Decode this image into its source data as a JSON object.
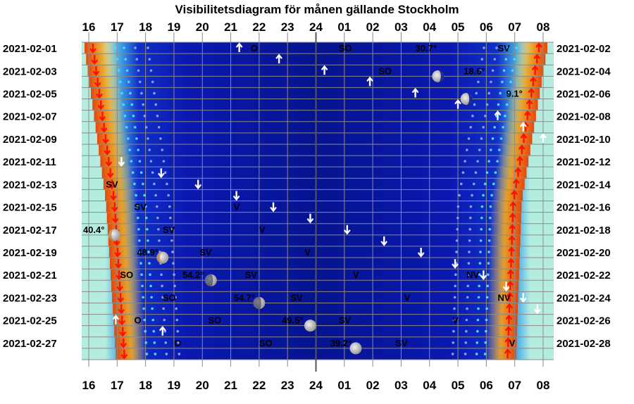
{
  "chart_data": {
    "type": "heatmap",
    "title": "Visibilitetsdiagram för månen gällande Stockholm",
    "x_ticks_top": [
      "16",
      "17",
      "18",
      "19",
      "20",
      "21",
      "22",
      "23",
      "24",
      "01",
      "02",
      "03",
      "04",
      "05",
      "06",
      "07",
      "08"
    ],
    "x_ticks_bottom": [
      "16",
      "17",
      "18",
      "19",
      "20",
      "21",
      "22",
      "23",
      "24",
      "01",
      "02",
      "03",
      "04",
      "05",
      "06",
      "07",
      "08"
    ],
    "x_range_hours": [
      16,
      32
    ],
    "rows_per_day": 2,
    "left_dates": [
      "2021-02-01",
      "2021-02-03",
      "2021-02-05",
      "2021-02-07",
      "2021-02-09",
      "2021-02-11",
      "2021-02-13",
      "2021-02-15",
      "2021-02-17",
      "2021-02-19",
      "2021-02-21",
      "2021-02-23",
      "2021-02-25",
      "2021-02-27"
    ],
    "right_dates": [
      "2021-02-02",
      "2021-02-04",
      "2021-02-06",
      "2021-02-08",
      "2021-02-10",
      "2021-02-12",
      "2021-02-14",
      "2021-02-16",
      "2021-02-18",
      "2021-02-20",
      "2021-02-22",
      "2021-02-24",
      "2021-02-26",
      "2021-02-28"
    ],
    "sunset_hour": [
      16.05,
      16.8,
      17.15
    ],
    "sunrise_hour": [
      31.95,
      31.05,
      30.85
    ],
    "moon_events": [
      {
        "day": 1,
        "type": "rise",
        "hour": 21.3
      },
      {
        "day": 2,
        "type": "rise",
        "hour": 22.7
      },
      {
        "day": 3,
        "type": "rise",
        "hour": 24.3
      },
      {
        "day": 4,
        "type": "rise",
        "hour": 25.9
      },
      {
        "day": 5,
        "type": "rise",
        "hour": 27.5
      },
      {
        "day": 6,
        "type": "rise",
        "hour": 29.0
      },
      {
        "day": 7,
        "type": "rise",
        "hour": 30.4
      },
      {
        "day": 8,
        "type": "rise",
        "hour": 31.3
      },
      {
        "day": 9,
        "type": "rise",
        "hour": 32.0
      },
      {
        "day": 11,
        "type": "set",
        "hour": 17.15
      },
      {
        "day": 12,
        "type": "set",
        "hour": 18.55
      },
      {
        "day": 13,
        "type": "set",
        "hour": 19.85
      },
      {
        "day": 14,
        "type": "set",
        "hour": 21.2
      },
      {
        "day": 15,
        "type": "set",
        "hour": 22.5
      },
      {
        "day": 16,
        "type": "set",
        "hour": 23.8
      },
      {
        "day": 17,
        "type": "set",
        "hour": 25.1
      },
      {
        "day": 18,
        "type": "set",
        "hour": 26.4
      },
      {
        "day": 19,
        "type": "set",
        "hour": 27.7
      },
      {
        "day": 20,
        "type": "set",
        "hour": 28.9
      },
      {
        "day": 21,
        "type": "set",
        "hour": 29.9
      },
      {
        "day": 22,
        "type": "set",
        "hour": 30.7
      },
      {
        "day": 23,
        "type": "set",
        "hour": 31.3
      },
      {
        "day": 24,
        "type": "set",
        "hour": 31.8
      },
      {
        "day": 25,
        "type": "rise",
        "hour": 16.95
      },
      {
        "day": 26,
        "type": "rise",
        "hour": 18.6
      }
    ],
    "moon_phases": [
      {
        "day": 3,
        "hour": 28.3,
        "phase": "last"
      },
      {
        "day": 5,
        "hour": 29.3,
        "phase": "last"
      },
      {
        "day": 17,
        "hour": 16.9,
        "phase": "first"
      },
      {
        "day": 19,
        "hour": 18.6,
        "phase": "first"
      },
      {
        "day": 21,
        "hour": 20.3,
        "phase": "gibbous"
      },
      {
        "day": 23,
        "hour": 22.0,
        "phase": "gibbous"
      },
      {
        "day": 25,
        "hour": 23.8,
        "phase": "full"
      },
      {
        "day": 27,
        "hour": 25.4,
        "phase": "full"
      }
    ],
    "annotations": [
      {
        "text": "O",
        "day": 1,
        "hour": 21.7
      },
      {
        "text": "SO",
        "day": 1,
        "hour": 24.8
      },
      {
        "text": "30.7°",
        "day": 1,
        "hour": 27.5
      },
      {
        "text": "SV",
        "day": 1,
        "hour": 30.4
      },
      {
        "text": "SO",
        "day": 3,
        "hour": 26.2
      },
      {
        "text": "18.6°",
        "day": 3,
        "hour": 29.2
      },
      {
        "text": "9.1°",
        "day": 5,
        "hour": 30.7
      },
      {
        "text": "SV",
        "day": 13,
        "hour": 16.6
      },
      {
        "text": "SV",
        "day": 15,
        "hour": 17.6
      },
      {
        "text": "V",
        "day": 15,
        "hour": 21.1
      },
      {
        "text": "40.4°",
        "day": 17,
        "hour": 15.8
      },
      {
        "text": "SV",
        "day": 17,
        "hour": 18.6
      },
      {
        "text": "V",
        "day": 17,
        "hour": 22.0
      },
      {
        "text": "48.9°",
        "day": 19,
        "hour": 17.7
      },
      {
        "text": "SV",
        "day": 19,
        "hour": 19.9
      },
      {
        "text": "V",
        "day": 19,
        "hour": 23.6
      },
      {
        "text": "SO",
        "day": 21,
        "hour": 17.1
      },
      {
        "text": "54.2°",
        "day": 21,
        "hour": 19.3
      },
      {
        "text": "SV",
        "day": 21,
        "hour": 21.5
      },
      {
        "text": "V",
        "day": 21,
        "hour": 25.3
      },
      {
        "text": "NV",
        "day": 21,
        "hour": 29.3
      },
      {
        "text": "SO",
        "day": 23,
        "hour": 18.6
      },
      {
        "text": "54.7°",
        "day": 23,
        "hour": 21.1
      },
      {
        "text": "SV",
        "day": 23,
        "hour": 23.1
      },
      {
        "text": "V",
        "day": 23,
        "hour": 27.1
      },
      {
        "text": "NV",
        "day": 23,
        "hour": 30.4
      },
      {
        "text": "O",
        "day": 25,
        "hour": 17.6
      },
      {
        "text": "SO",
        "day": 25,
        "hour": 20.2
      },
      {
        "text": "49.5°",
        "day": 25,
        "hour": 22.8
      },
      {
        "text": "SV",
        "day": 25,
        "hour": 24.8
      },
      {
        "text": "V",
        "day": 25,
        "hour": 28.8
      },
      {
        "text": "O",
        "day": 27,
        "hour": 19.0
      },
      {
        "text": "SO",
        "day": 27,
        "hour": 22.0
      },
      {
        "text": "39.2°",
        "day": 27,
        "hour": 24.5
      },
      {
        "text": "SV",
        "day": 27,
        "hour": 26.8
      },
      {
        "text": "V",
        "day": 27,
        "hour": 30.8
      }
    ],
    "colors": {
      "twilight": "#b4ece0",
      "night": "#0a10a8",
      "night_center": "#061080",
      "sunset": "#e8a010",
      "day_red": "#ff1000",
      "grid": "#8a8a8a",
      "moon_arrow": "#ffffff",
      "midnight_line": "#555555"
    }
  }
}
